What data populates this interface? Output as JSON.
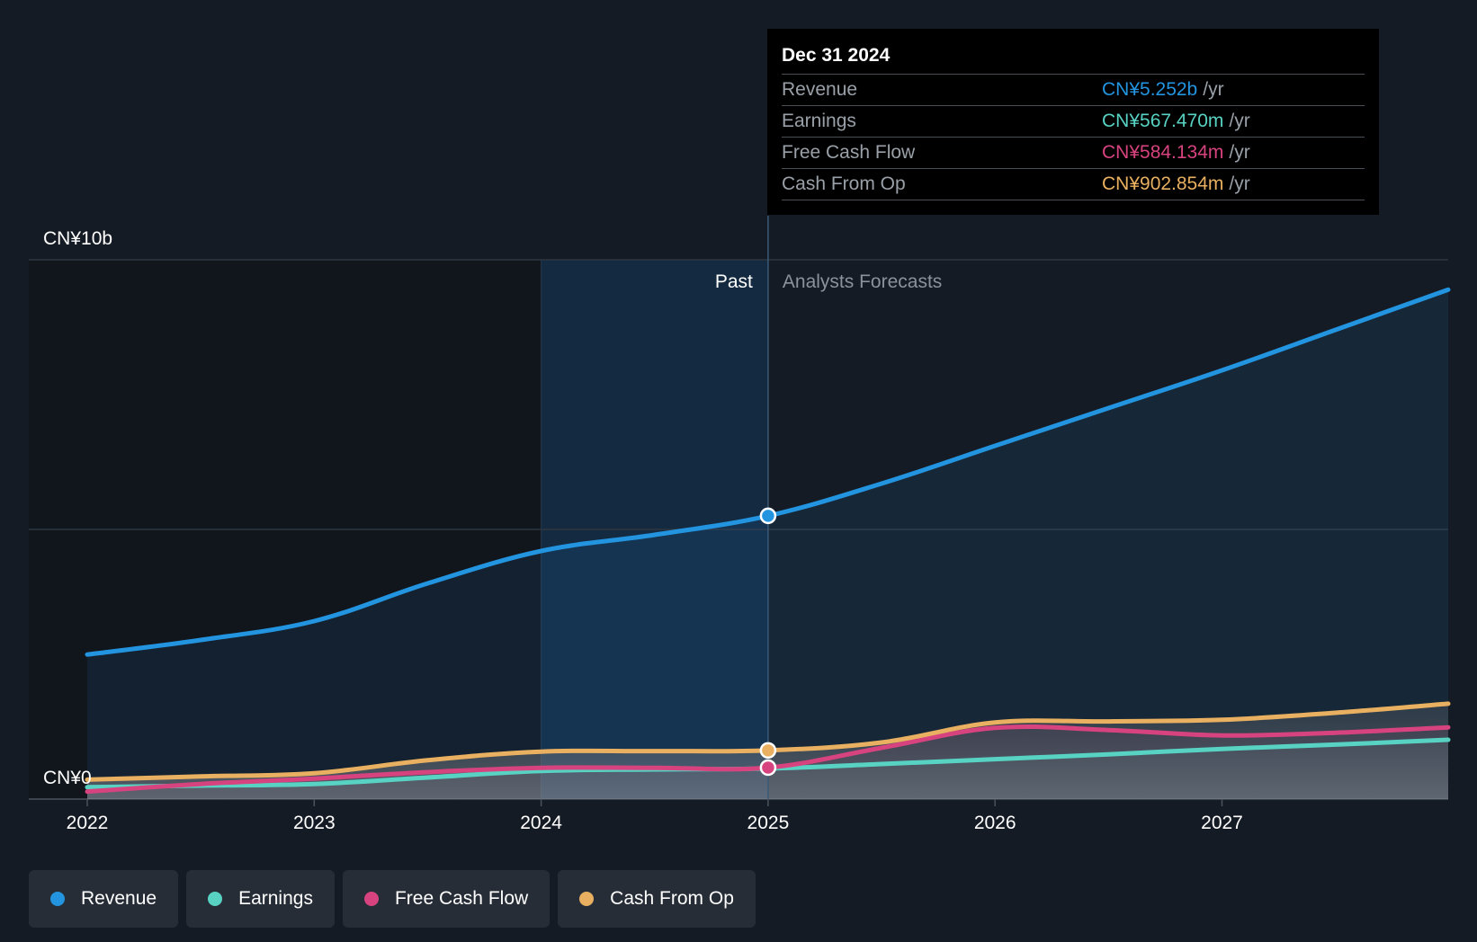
{
  "chart_data": {
    "type": "area",
    "y_unit_label_top": "CN¥10b",
    "y_unit_label_bottom": "CN¥0",
    "ylim": [
      0,
      10
    ],
    "xlim": [
      2021.75,
      2028.0
    ],
    "x_ticks": [
      "2022",
      "2023",
      "2024",
      "2025",
      "2026",
      "2027"
    ],
    "past_label": "Past",
    "forecast_label": "Analysts Forecasts",
    "past_end": 2025.0,
    "highlight_start": 2024.0,
    "series": [
      {
        "name": "Revenue",
        "color": "#2394df",
        "x": [
          2022.0,
          2022.5,
          2023.0,
          2023.5,
          2024.0,
          2024.5,
          2025.0,
          2025.5,
          2026.0,
          2026.5,
          2027.0,
          2027.5,
          2028.0
        ],
        "y": [
          2.68,
          2.95,
          3.3,
          4.0,
          4.6,
          4.9,
          5.252,
          5.85,
          6.55,
          7.25,
          7.95,
          8.7,
          9.45
        ]
      },
      {
        "name": "Earnings",
        "color": "#58d2c2",
        "x": [
          2022.0,
          2022.5,
          2023.0,
          2023.5,
          2024.0,
          2024.5,
          2025.0,
          2025.5,
          2026.0,
          2026.5,
          2027.0,
          2027.5,
          2028.0
        ],
        "y": [
          0.22,
          0.25,
          0.28,
          0.4,
          0.52,
          0.55,
          0.567,
          0.65,
          0.74,
          0.83,
          0.93,
          1.01,
          1.1
        ]
      },
      {
        "name": "Free Cash Flow",
        "color": "#d6437e",
        "x": [
          2022.0,
          2022.5,
          2023.0,
          2023.5,
          2024.0,
          2024.5,
          2025.0,
          2025.5,
          2026.0,
          2026.5,
          2027.0,
          2027.5,
          2028.0
        ],
        "y": [
          0.14,
          0.28,
          0.38,
          0.5,
          0.58,
          0.58,
          0.584,
          0.95,
          1.32,
          1.28,
          1.18,
          1.23,
          1.33
        ]
      },
      {
        "name": "Cash From Op",
        "color": "#e8b060",
        "x": [
          2022.0,
          2022.5,
          2023.0,
          2023.5,
          2024.0,
          2024.5,
          2025.0,
          2025.5,
          2026.0,
          2026.5,
          2027.0,
          2027.5,
          2028.0
        ],
        "y": [
          0.36,
          0.42,
          0.48,
          0.72,
          0.88,
          0.89,
          0.903,
          1.05,
          1.42,
          1.44,
          1.47,
          1.6,
          1.77
        ]
      }
    ],
    "highlight_points": [
      {
        "series": "Revenue",
        "x": 2025.0,
        "y": 5.252
      },
      {
        "series": "Cash From Op",
        "x": 2025.0,
        "y": 0.903
      },
      {
        "series": "Free Cash Flow",
        "x": 2025.0,
        "y": 0.584
      }
    ]
  },
  "tooltip": {
    "date": "Dec 31 2024",
    "unit": "/yr",
    "rows": [
      {
        "label": "Revenue",
        "value": "CN¥5.252b",
        "color": "#2394df"
      },
      {
        "label": "Earnings",
        "value": "CN¥567.470m",
        "color": "#58d2c2"
      },
      {
        "label": "Free Cash Flow",
        "value": "CN¥584.134m",
        "color": "#d6437e"
      },
      {
        "label": "Cash From Op",
        "value": "CN¥902.854m",
        "color": "#e8b060"
      }
    ]
  },
  "legend": [
    {
      "label": "Revenue",
      "color": "#2394df"
    },
    {
      "label": "Earnings",
      "color": "#58d2c2"
    },
    {
      "label": "Free Cash Flow",
      "color": "#d6437e"
    },
    {
      "label": "Cash From Op",
      "color": "#e8b060"
    }
  ]
}
